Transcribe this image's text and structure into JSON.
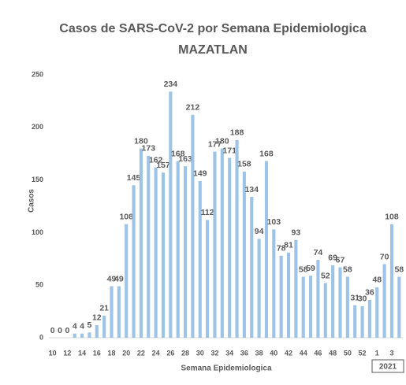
{
  "chart_data": {
    "type": "bar",
    "title": "Casos de SARS-CoV-2 por Semana Epidemiologica",
    "subtitle": "MAZATLAN",
    "x_label": "Semana Epidemiologica",
    "y_label": "Casos",
    "year_label": "2021",
    "categories": [
      "10",
      null,
      "12",
      null,
      "14",
      null,
      "16",
      null,
      "18",
      null,
      "20",
      null,
      "22",
      null,
      "24",
      null,
      "26",
      null,
      "28",
      null,
      "30",
      null,
      "32",
      null,
      "34",
      null,
      "36",
      null,
      "38",
      null,
      "40",
      null,
      "42",
      null,
      "44",
      null,
      "46",
      null,
      "48",
      null,
      "50",
      null,
      "52",
      null,
      "1",
      null,
      "3",
      null
    ],
    "values": [
      0,
      0,
      0,
      4,
      4,
      5,
      12,
      21,
      49,
      49,
      108,
      145,
      180,
      173,
      162,
      157,
      234,
      168,
      163,
      212,
      149,
      112,
      177,
      180,
      171,
      188,
      158,
      134,
      94,
      168,
      103,
      78,
      81,
      93,
      58,
      59,
      74,
      52,
      69,
      67,
      58,
      31,
      30,
      36,
      48,
      70,
      108,
      58
    ],
    "color": "#9dc3e6",
    "ylim": [
      0,
      250
    ],
    "yticks": [
      0,
      50,
      100,
      150,
      200,
      250
    ],
    "grid": false
  }
}
